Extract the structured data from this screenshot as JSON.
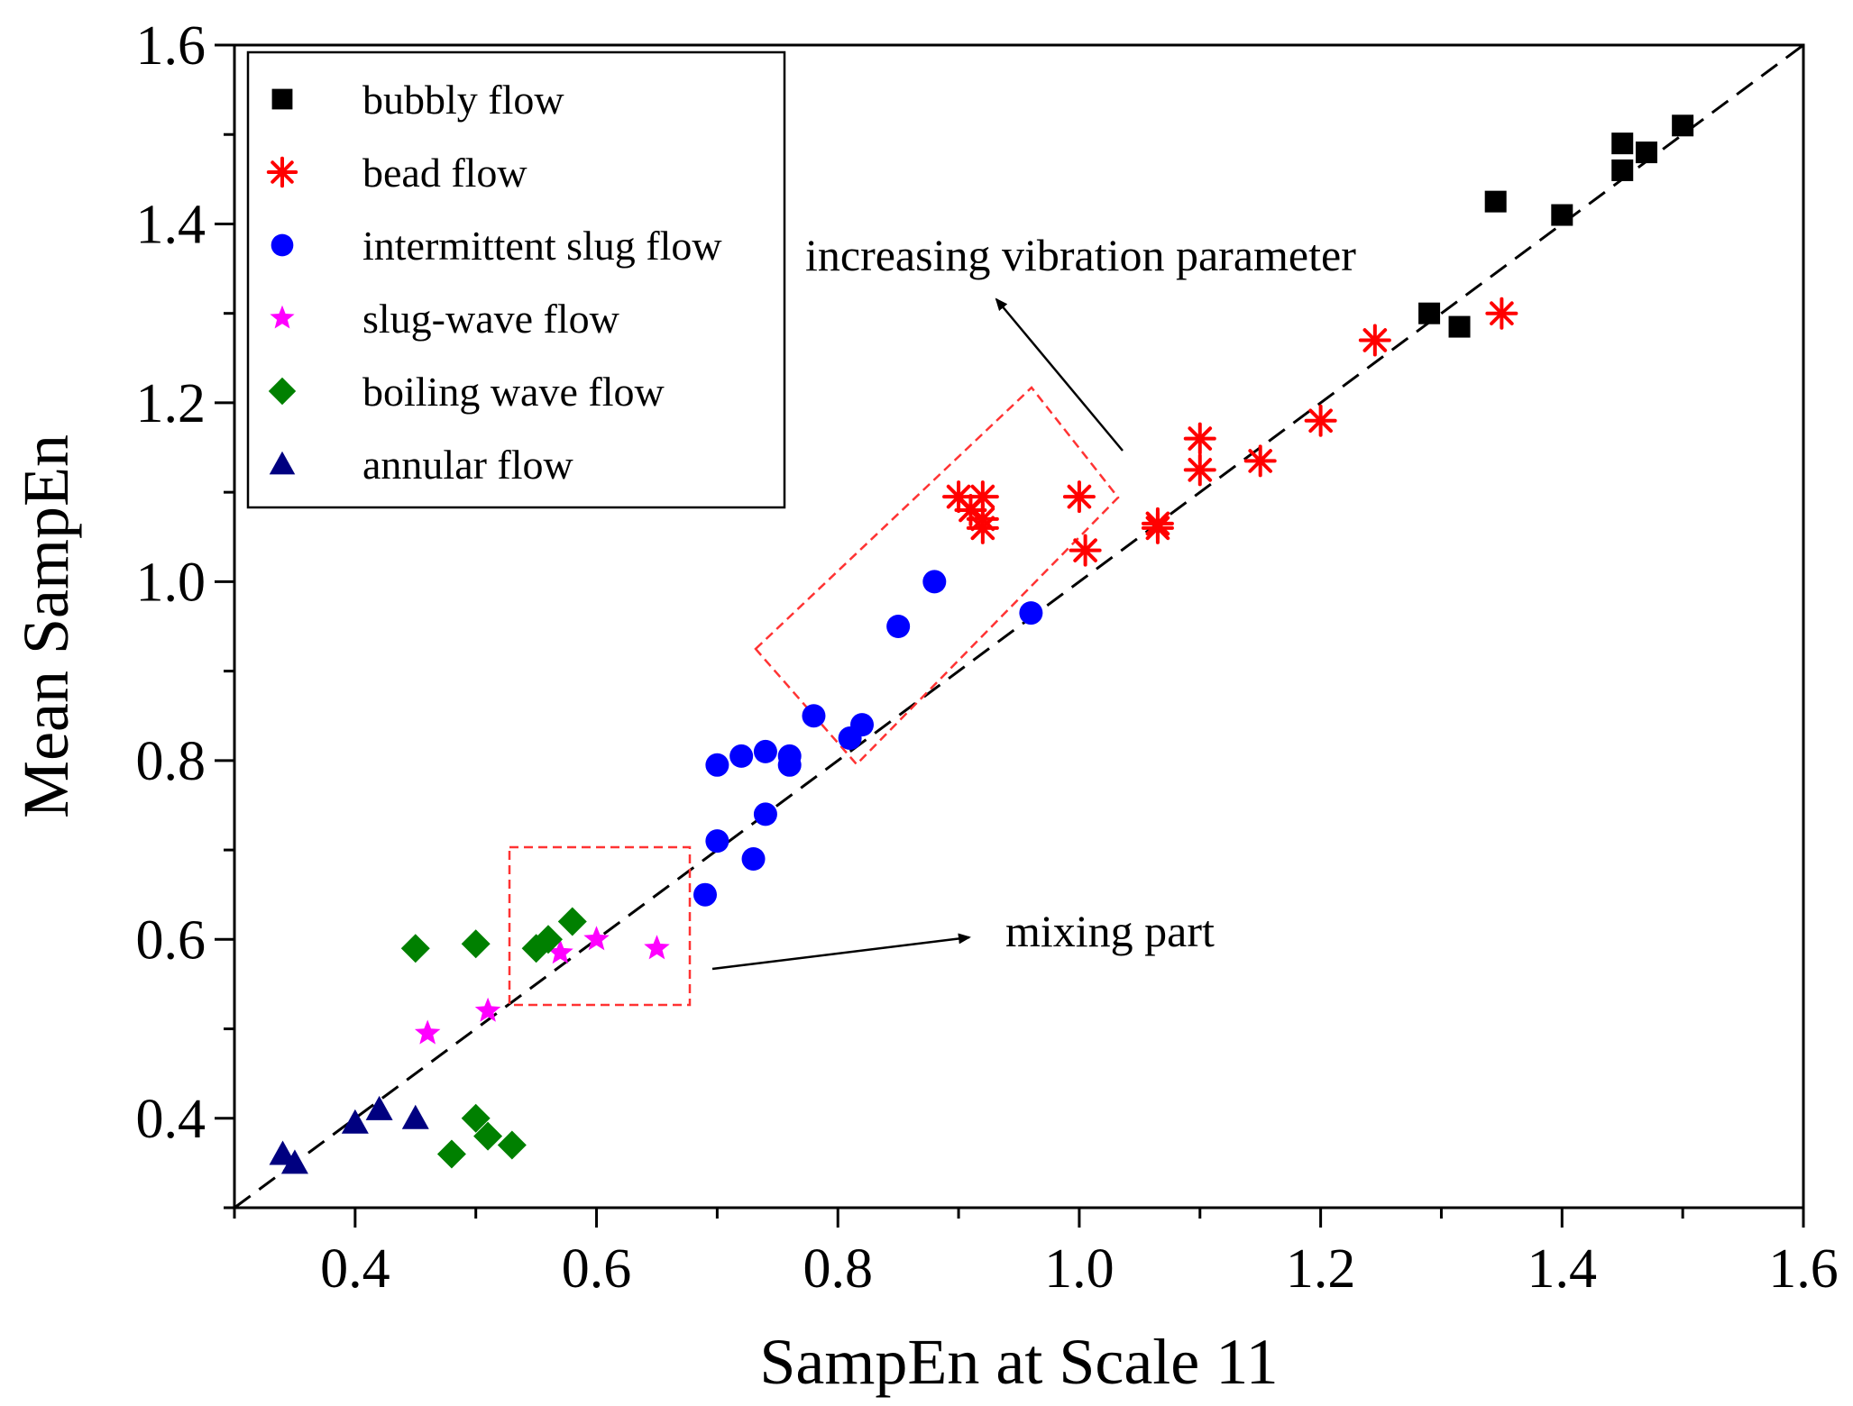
{
  "chart_data": {
    "type": "scatter",
    "xlabel": "SampEn at Scale 11",
    "ylabel": "Mean SampEn",
    "xlim": [
      0.3,
      1.6
    ],
    "ylim": [
      0.3,
      1.6
    ],
    "xticks": [
      "0.4",
      "0.6",
      "0.8",
      "1.0",
      "1.2",
      "1.4",
      "1.6"
    ],
    "yticks": [
      "0.4",
      "0.6",
      "0.8",
      "1.0",
      "1.2",
      "1.4",
      "1.6"
    ],
    "grid": false,
    "legend_position": "top-left",
    "reference_line": {
      "style": "dashed",
      "color": "#000000",
      "from": [
        0.3,
        0.3
      ],
      "to": [
        1.6,
        1.6
      ]
    },
    "series": [
      {
        "name": "bubbly flow",
        "marker": "square",
        "color": "#000000",
        "x": [
          1.5,
          1.47,
          1.45,
          1.45,
          1.4,
          1.345,
          1.29,
          1.315
        ],
        "y": [
          1.51,
          1.48,
          1.49,
          1.46,
          1.41,
          1.425,
          1.3,
          1.285
        ]
      },
      {
        "name": "bead flow",
        "marker": "asterisk",
        "color": "#ff0000",
        "x": [
          1.35,
          1.245,
          1.2,
          1.15,
          1.1,
          1.1,
          1.065,
          1.065,
          1.005,
          1.0,
          0.9,
          0.92,
          0.91,
          0.92,
          0.92
        ],
        "y": [
          1.3,
          1.27,
          1.18,
          1.135,
          1.16,
          1.125,
          1.06,
          1.065,
          1.035,
          1.095,
          1.095,
          1.095,
          1.08,
          1.07,
          1.06
        ]
      },
      {
        "name": "intermittent slug flow",
        "marker": "circle",
        "color": "#0000ff",
        "x": [
          0.88,
          0.85,
          0.96,
          0.78,
          0.82,
          0.81,
          0.76,
          0.76,
          0.74,
          0.72,
          0.7,
          0.74,
          0.7,
          0.73,
          0.69
        ],
        "y": [
          1.0,
          0.95,
          0.965,
          0.85,
          0.84,
          0.825,
          0.805,
          0.795,
          0.81,
          0.805,
          0.795,
          0.74,
          0.71,
          0.69,
          0.65
        ]
      },
      {
        "name": "slug-wave flow",
        "marker": "star",
        "color": "#ff00ff",
        "x": [
          0.6,
          0.65,
          0.57,
          0.51,
          0.46
        ],
        "y": [
          0.6,
          0.59,
          0.585,
          0.52,
          0.495
        ]
      },
      {
        "name": "boiling wave flow",
        "marker": "diamond",
        "color": "#008000",
        "x": [
          0.45,
          0.5,
          0.55,
          0.56,
          0.58,
          0.5,
          0.51,
          0.53,
          0.48
        ],
        "y": [
          0.59,
          0.595,
          0.59,
          0.6,
          0.62,
          0.4,
          0.38,
          0.37,
          0.36
        ]
      },
      {
        "name": "annular flow",
        "marker": "triangle",
        "color": "#000080",
        "x": [
          0.34,
          0.35,
          0.4,
          0.42,
          0.45
        ],
        "y": [
          0.36,
          0.35,
          0.395,
          0.41,
          0.4
        ]
      }
    ],
    "annotations": [
      {
        "text": "increasing vibration parameter"
      },
      {
        "text": "mixing part"
      }
    ]
  }
}
